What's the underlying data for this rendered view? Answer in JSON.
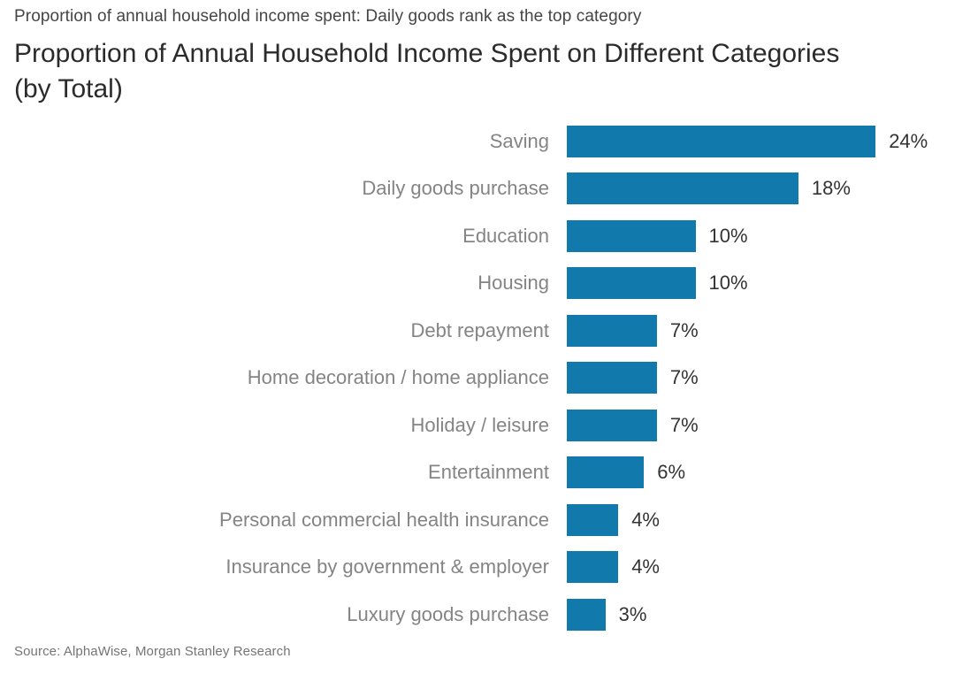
{
  "header": {
    "kicker": "Proportion of annual household income spent: Daily goods rank as the top category",
    "title": "Proportion of Annual Household Income Spent on Different Categories (by Total)"
  },
  "chart_data": {
    "type": "bar",
    "orientation": "horizontal",
    "title": "Proportion of Annual Household Income Spent on Different Categories (by Total)",
    "xlabel": "",
    "ylabel": "",
    "xlim": [
      0,
      25
    ],
    "grid": false,
    "legend": false,
    "bar_color": "#1179ab",
    "category_label_color": "#848484",
    "value_label_color": "#333333",
    "categories": [
      "Saving",
      "Daily goods purchase",
      "Education",
      "Housing",
      "Debt repayment",
      "Home decoration / home appliance",
      "Holiday / leisure",
      "Entertainment",
      "Personal commercial health insurance",
      "Insurance by government & employer",
      "Luxury goods purchase"
    ],
    "values": [
      24,
      18,
      10,
      10,
      7,
      7,
      7,
      6,
      4,
      4,
      3
    ],
    "value_labels": [
      "24%",
      "18%",
      "10%",
      "10%",
      "7%",
      "7%",
      "7%",
      "6%",
      "4%",
      "4%",
      "3%"
    ]
  },
  "footer": {
    "source": "Source: AlphaWise, Morgan Stanley Research"
  }
}
